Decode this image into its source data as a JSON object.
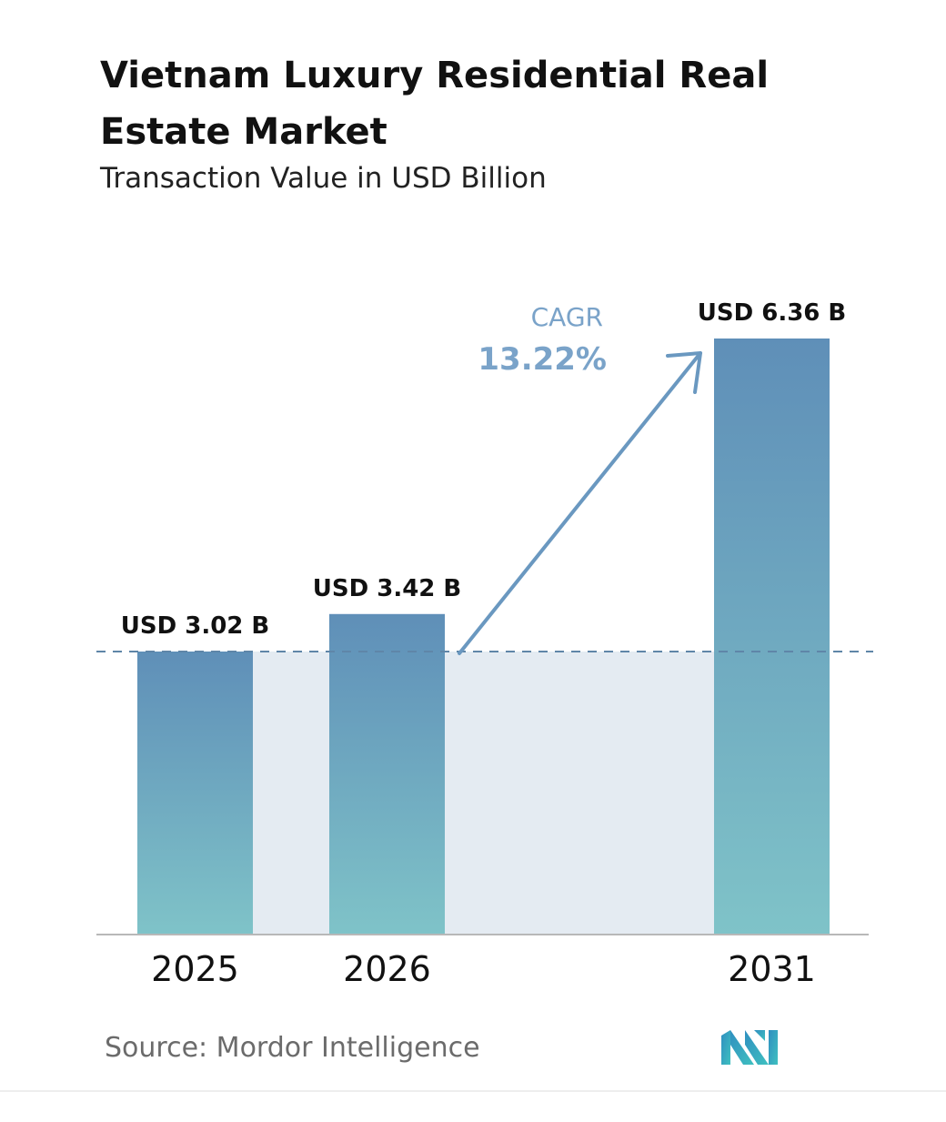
{
  "header": {
    "title": "Vietnam Luxury Residential Real Estate Market",
    "subtitle": "Transaction Value in USD Billion"
  },
  "chart_data": {
    "type": "bar",
    "categories": [
      "2025",
      "2026",
      "2031"
    ],
    "values": [
      3.02,
      3.42,
      6.36
    ],
    "value_labels": [
      "USD 3.02 B",
      "USD 3.42 B",
      "USD 6.36 B"
    ],
    "title": "Vietnam Luxury Residential Real Estate Market",
    "subtitle": "Transaction Value in USD Billion",
    "xlabel": "",
    "ylabel": "",
    "grid": false,
    "legend": "none",
    "reference_line_value": 3.02,
    "annotation": {
      "label": "CAGR",
      "value": "13.22%"
    },
    "colors": {
      "bar_top": "#5f8fb8",
      "bar_bottom": "#7fc3c8",
      "band": "#e4ebf2",
      "arrow": "#6a98c0",
      "cagr_label": "#7aa3c9"
    }
  },
  "footer": {
    "source": "Source:  Mordor Intelligence",
    "logo": "mordor-intelligence-logo"
  }
}
